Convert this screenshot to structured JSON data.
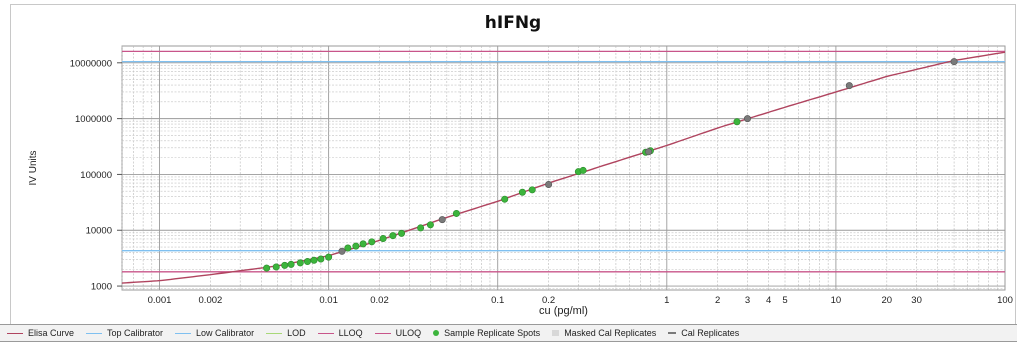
{
  "chart_data": {
    "type": "line",
    "title": "hIFNg",
    "xlabel": "cu (pg/ml)",
    "ylabel": "IV Units",
    "x_scale": "log",
    "y_scale": "log",
    "xlim": [
      0.0006,
      100
    ],
    "ylim": [
      850,
      20000000
    ],
    "x_ticks": [
      0.001,
      0.002,
      0.01,
      0.02,
      0.1,
      0.2,
      1,
      2,
      3,
      4,
      5,
      10,
      20,
      30,
      100
    ],
    "x_tick_labels": [
      "0.001",
      "0.002",
      "0.01",
      "0.02",
      "0.1",
      "0.2",
      "1",
      "2",
      "3",
      "4",
      "5",
      "10",
      "20",
      "30",
      "100"
    ],
    "y_ticks": [
      1000,
      10000,
      100000,
      1000000,
      10000000
    ],
    "y_tick_labels": [
      "1000",
      "10000",
      "100000",
      "1000000",
      "10000000"
    ],
    "grid": true,
    "legend_position": "bottom",
    "series": [
      {
        "name": "Elisa Curve",
        "kind": "curve",
        "color": "#b0445f",
        "points": [
          [
            0.0006,
            1130
          ],
          [
            0.001,
            1250
          ],
          [
            0.002,
            1600
          ],
          [
            0.005,
            2300
          ],
          [
            0.01,
            3500
          ],
          [
            0.02,
            6600
          ],
          [
            0.05,
            17000
          ],
          [
            0.1,
            33000
          ],
          [
            0.2,
            70000
          ],
          [
            0.5,
            170000
          ],
          [
            1,
            330000
          ],
          [
            2,
            680000
          ],
          [
            5,
            1600000
          ],
          [
            10,
            3000000
          ],
          [
            20,
            5700000
          ],
          [
            50,
            11000000
          ],
          [
            100,
            15500000
          ]
        ]
      },
      {
        "name": "Sample Replicate Spots",
        "kind": "points",
        "color": "#3cb43c",
        "points": [
          [
            0.0043,
            2100
          ],
          [
            0.0049,
            2200
          ],
          [
            0.0055,
            2350
          ],
          [
            0.006,
            2450
          ],
          [
            0.0068,
            2600
          ],
          [
            0.0075,
            2750
          ],
          [
            0.0082,
            2900
          ],
          [
            0.009,
            3050
          ],
          [
            0.01,
            3300
          ],
          [
            0.013,
            4800
          ],
          [
            0.0145,
            5200
          ],
          [
            0.016,
            5700
          ],
          [
            0.018,
            6200
          ],
          [
            0.021,
            7100
          ],
          [
            0.024,
            8000
          ],
          [
            0.027,
            8800
          ],
          [
            0.035,
            11000
          ],
          [
            0.04,
            12500
          ],
          [
            0.057,
            20000
          ],
          [
            0.11,
            36000
          ],
          [
            0.14,
            48000
          ],
          [
            0.16,
            53000
          ],
          [
            0.3,
            112000
          ],
          [
            0.32,
            118000
          ],
          [
            0.75,
            250000
          ],
          [
            0.8,
            265000
          ],
          [
            2.6,
            880000
          ]
        ]
      },
      {
        "name": "Cal Replicates",
        "kind": "points",
        "color": "#7a7a7a",
        "points": [
          [
            0.012,
            4200
          ],
          [
            0.047,
            15500
          ],
          [
            0.2,
            66000
          ],
          [
            0.78,
            255000
          ],
          [
            3,
            1000000
          ],
          [
            12,
            3900000
          ],
          [
            50,
            10500000
          ]
        ]
      }
    ],
    "hlines": [
      {
        "name": "Top Calibrator",
        "y": 10500000,
        "color": "#7fc0f0"
      },
      {
        "name": "Low Calibrator",
        "y": 4300,
        "color": "#7fc0f0"
      },
      {
        "name": "LLOQ",
        "y": 1800,
        "color": "#c8558a"
      },
      {
        "name": "ULOQ",
        "y": 16000000,
        "color": "#c8558a"
      }
    ]
  },
  "legend": [
    {
      "label": "Elisa Curve",
      "symbol": "line",
      "color": "#b0445f"
    },
    {
      "label": "Top Calibrator",
      "symbol": "line",
      "color": "#7fc0f0"
    },
    {
      "label": "Low Calibrator",
      "symbol": "line",
      "color": "#7fc0f0"
    },
    {
      "label": "LOD",
      "symbol": "line",
      "color": "#a8d878"
    },
    {
      "label": "LLOQ",
      "symbol": "line",
      "color": "#c8558a"
    },
    {
      "label": "ULOQ",
      "symbol": "line",
      "color": "#c8558a"
    },
    {
      "label": "Sample Replicate Spots",
      "symbol": "dot",
      "color": "#3cb43c"
    },
    {
      "label": "Masked Cal Replicates",
      "symbol": "square",
      "color": "#d8d8d8"
    },
    {
      "label": "Cal Replicates",
      "symbol": "dash",
      "color": "#7a7a7a"
    }
  ]
}
